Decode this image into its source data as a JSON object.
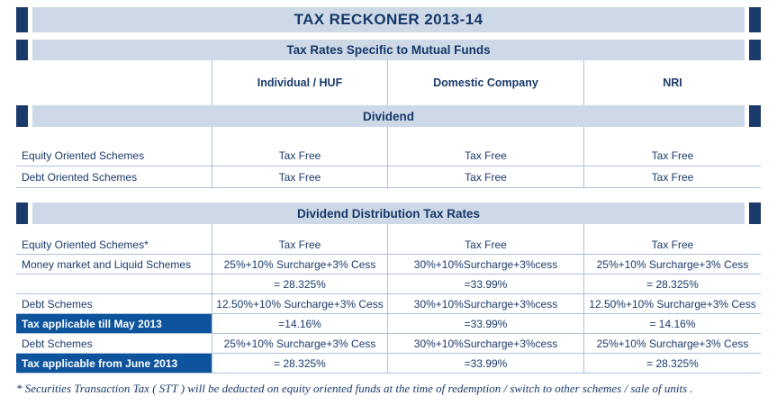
{
  "page": {
    "title": "TAX RECKONER 2013-14",
    "subtitle": "Tax Rates Specific to Mutual Funds",
    "footnote": "* Securities Transaction Tax ( STT ) will be deducted on equity oriented funds at the time of redemption / switch to other schemes  / sale of units ."
  },
  "columns": [
    "Individual / HUF",
    "Domestic Company",
    "NRI"
  ],
  "sections": [
    {
      "header": "Dividend",
      "rows": [
        {
          "label": "Equity Oriented Schemes",
          "cells": [
            "Tax Free",
            "Tax Free",
            "Tax Free"
          ]
        },
        {
          "label": "Debt Oriented Schemes",
          "cells": [
            "Tax Free",
            "Tax Free",
            "Tax Free"
          ]
        }
      ]
    },
    {
      "header": "Dividend Distribution Tax Rates",
      "rows": [
        {
          "label": "Equity Oriented Schemes*",
          "cells": [
            "Tax Free",
            "Tax Free",
            "Tax Free"
          ]
        },
        {
          "label": "Money market and Liquid Schemes",
          "cells": [
            "25%+10% Surcharge+3% Cess",
            "30%+10%Surcharge+3%cess",
            "25%+10% Surcharge+3% Cess"
          ]
        },
        {
          "label": "",
          "cells": [
            "= 28.325%",
            "=33.99%",
            "= 28.325%"
          ]
        },
        {
          "label": "Debt Schemes",
          "cells": [
            "12.50%+10% Surcharge+3% Cess",
            "30%+10%Surcharge+3%cess",
            "12.50%+10% Surcharge+3% Cess"
          ]
        },
        {
          "label": "Tax applicable till May 2013",
          "highlight": true,
          "cells": [
            "=14.16%",
            "=33.99%",
            "= 14.16%"
          ]
        },
        {
          "label": "Debt Schemes",
          "cells": [
            "25%+10% Surcharge+3% Cess",
            "30%+10%Surcharge+3%cess",
            "25%+10% Surcharge+3% Cess"
          ]
        },
        {
          "label": "Tax applicable from June 2013",
          "highlight": true,
          "cells": [
            "= 28.325%",
            "=33.99%",
            "= 28.325%"
          ]
        }
      ]
    }
  ],
  "colors": {
    "band_background": "#cdd9e6",
    "navy_text": "#1a3a6b",
    "highlight_background": "#0e549c",
    "highlight_text": "#ffffff",
    "border": "#aac2da"
  }
}
